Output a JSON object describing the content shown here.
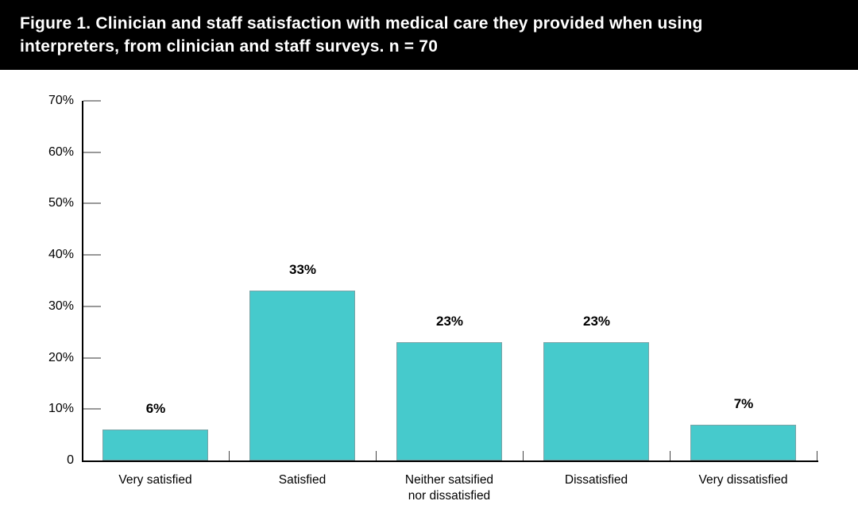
{
  "header": {
    "line1": "Figure 1. Clinician and staff satisfaction with medical care they provided when using",
    "line2": "interpreters, from clinician and staff surveys. n = 70"
  },
  "colors": {
    "banner_bg": "#000000",
    "banner_text": "#ffffff",
    "bar_fill": "#46CACC",
    "bar_border": "#7AA3A6",
    "axis": "#000000",
    "y_tick": "#999999",
    "x_tick": "#444444",
    "label_text": "#000000"
  },
  "chart_data": {
    "type": "bar",
    "title": "Figure 1. Clinician and staff satisfaction with medical care they provided when using interpreters, from clinician and staff surveys. n = 70",
    "categories": [
      "Very satisfied",
      "Satisfied",
      "Neither satsified\nnor dissatisfied",
      "Dissatisfied",
      "Very dissatisfied"
    ],
    "values": [
      6,
      33,
      23,
      23,
      7
    ],
    "value_labels": [
      "6%",
      "33%",
      "23%",
      "23%",
      "7%"
    ],
    "xlabel": "",
    "ylabel": "",
    "ylim": [
      0,
      70
    ],
    "y_step": 10,
    "y_tick_labels": [
      "70%",
      "60%",
      "50%",
      "40%",
      "30%",
      "20%",
      "10%",
      "0"
    ],
    "grid": false,
    "legend_position": "none"
  }
}
